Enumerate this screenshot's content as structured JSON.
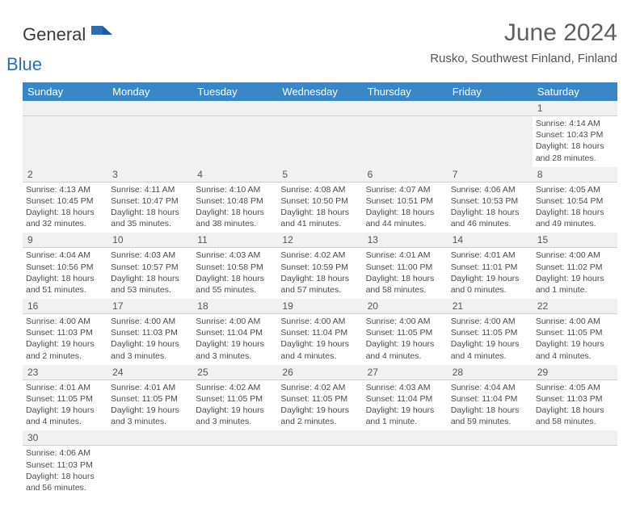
{
  "brand": {
    "word1": "General",
    "word2": "Blue"
  },
  "title": "June 2024",
  "location": "Rusko, Southwest Finland, Finland",
  "colors": {
    "header_bg": "#3a87c8",
    "header_text": "#ffffff",
    "rule": "#3a87c8",
    "daynum_bg": "#f1f1f1",
    "text": "#4a4a4a"
  },
  "days": [
    "Sunday",
    "Monday",
    "Tuesday",
    "Wednesday",
    "Thursday",
    "Friday",
    "Saturday"
  ],
  "weeks": [
    {
      "nums": [
        "",
        "",
        "",
        "",
        "",
        "",
        "1"
      ],
      "cells": [
        null,
        null,
        null,
        null,
        null,
        null,
        {
          "sr": "Sunrise: 4:14 AM",
          "ss": "Sunset: 10:43 PM",
          "dl": "Daylight: 18 hours and 28 minutes."
        }
      ]
    },
    {
      "nums": [
        "2",
        "3",
        "4",
        "5",
        "6",
        "7",
        "8"
      ],
      "cells": [
        {
          "sr": "Sunrise: 4:13 AM",
          "ss": "Sunset: 10:45 PM",
          "dl": "Daylight: 18 hours and 32 minutes."
        },
        {
          "sr": "Sunrise: 4:11 AM",
          "ss": "Sunset: 10:47 PM",
          "dl": "Daylight: 18 hours and 35 minutes."
        },
        {
          "sr": "Sunrise: 4:10 AM",
          "ss": "Sunset: 10:48 PM",
          "dl": "Daylight: 18 hours and 38 minutes."
        },
        {
          "sr": "Sunrise: 4:08 AM",
          "ss": "Sunset: 10:50 PM",
          "dl": "Daylight: 18 hours and 41 minutes."
        },
        {
          "sr": "Sunrise: 4:07 AM",
          "ss": "Sunset: 10:51 PM",
          "dl": "Daylight: 18 hours and 44 minutes."
        },
        {
          "sr": "Sunrise: 4:06 AM",
          "ss": "Sunset: 10:53 PM",
          "dl": "Daylight: 18 hours and 46 minutes."
        },
        {
          "sr": "Sunrise: 4:05 AM",
          "ss": "Sunset: 10:54 PM",
          "dl": "Daylight: 18 hours and 49 minutes."
        }
      ]
    },
    {
      "nums": [
        "9",
        "10",
        "11",
        "12",
        "13",
        "14",
        "15"
      ],
      "cells": [
        {
          "sr": "Sunrise: 4:04 AM",
          "ss": "Sunset: 10:56 PM",
          "dl": "Daylight: 18 hours and 51 minutes."
        },
        {
          "sr": "Sunrise: 4:03 AM",
          "ss": "Sunset: 10:57 PM",
          "dl": "Daylight: 18 hours and 53 minutes."
        },
        {
          "sr": "Sunrise: 4:03 AM",
          "ss": "Sunset: 10:58 PM",
          "dl": "Daylight: 18 hours and 55 minutes."
        },
        {
          "sr": "Sunrise: 4:02 AM",
          "ss": "Sunset: 10:59 PM",
          "dl": "Daylight: 18 hours and 57 minutes."
        },
        {
          "sr": "Sunrise: 4:01 AM",
          "ss": "Sunset: 11:00 PM",
          "dl": "Daylight: 18 hours and 58 minutes."
        },
        {
          "sr": "Sunrise: 4:01 AM",
          "ss": "Sunset: 11:01 PM",
          "dl": "Daylight: 19 hours and 0 minutes."
        },
        {
          "sr": "Sunrise: 4:00 AM",
          "ss": "Sunset: 11:02 PM",
          "dl": "Daylight: 19 hours and 1 minute."
        }
      ]
    },
    {
      "nums": [
        "16",
        "17",
        "18",
        "19",
        "20",
        "21",
        "22"
      ],
      "cells": [
        {
          "sr": "Sunrise: 4:00 AM",
          "ss": "Sunset: 11:03 PM",
          "dl": "Daylight: 19 hours and 2 minutes."
        },
        {
          "sr": "Sunrise: 4:00 AM",
          "ss": "Sunset: 11:03 PM",
          "dl": "Daylight: 19 hours and 3 minutes."
        },
        {
          "sr": "Sunrise: 4:00 AM",
          "ss": "Sunset: 11:04 PM",
          "dl": "Daylight: 19 hours and 3 minutes."
        },
        {
          "sr": "Sunrise: 4:00 AM",
          "ss": "Sunset: 11:04 PM",
          "dl": "Daylight: 19 hours and 4 minutes."
        },
        {
          "sr": "Sunrise: 4:00 AM",
          "ss": "Sunset: 11:05 PM",
          "dl": "Daylight: 19 hours and 4 minutes."
        },
        {
          "sr": "Sunrise: 4:00 AM",
          "ss": "Sunset: 11:05 PM",
          "dl": "Daylight: 19 hours and 4 minutes."
        },
        {
          "sr": "Sunrise: 4:00 AM",
          "ss": "Sunset: 11:05 PM",
          "dl": "Daylight: 19 hours and 4 minutes."
        }
      ]
    },
    {
      "nums": [
        "23",
        "24",
        "25",
        "26",
        "27",
        "28",
        "29"
      ],
      "cells": [
        {
          "sr": "Sunrise: 4:01 AM",
          "ss": "Sunset: 11:05 PM",
          "dl": "Daylight: 19 hours and 4 minutes."
        },
        {
          "sr": "Sunrise: 4:01 AM",
          "ss": "Sunset: 11:05 PM",
          "dl": "Daylight: 19 hours and 3 minutes."
        },
        {
          "sr": "Sunrise: 4:02 AM",
          "ss": "Sunset: 11:05 PM",
          "dl": "Daylight: 19 hours and 3 minutes."
        },
        {
          "sr": "Sunrise: 4:02 AM",
          "ss": "Sunset: 11:05 PM",
          "dl": "Daylight: 19 hours and 2 minutes."
        },
        {
          "sr": "Sunrise: 4:03 AM",
          "ss": "Sunset: 11:04 PM",
          "dl": "Daylight: 19 hours and 1 minute."
        },
        {
          "sr": "Sunrise: 4:04 AM",
          "ss": "Sunset: 11:04 PM",
          "dl": "Daylight: 18 hours and 59 minutes."
        },
        {
          "sr": "Sunrise: 4:05 AM",
          "ss": "Sunset: 11:03 PM",
          "dl": "Daylight: 18 hours and 58 minutes."
        }
      ]
    },
    {
      "nums": [
        "30",
        "",
        "",
        "",
        "",
        "",
        ""
      ],
      "cells": [
        {
          "sr": "Sunrise: 4:06 AM",
          "ss": "Sunset: 11:03 PM",
          "dl": "Daylight: 18 hours and 56 minutes."
        },
        null,
        null,
        null,
        null,
        null,
        null
      ]
    }
  ]
}
